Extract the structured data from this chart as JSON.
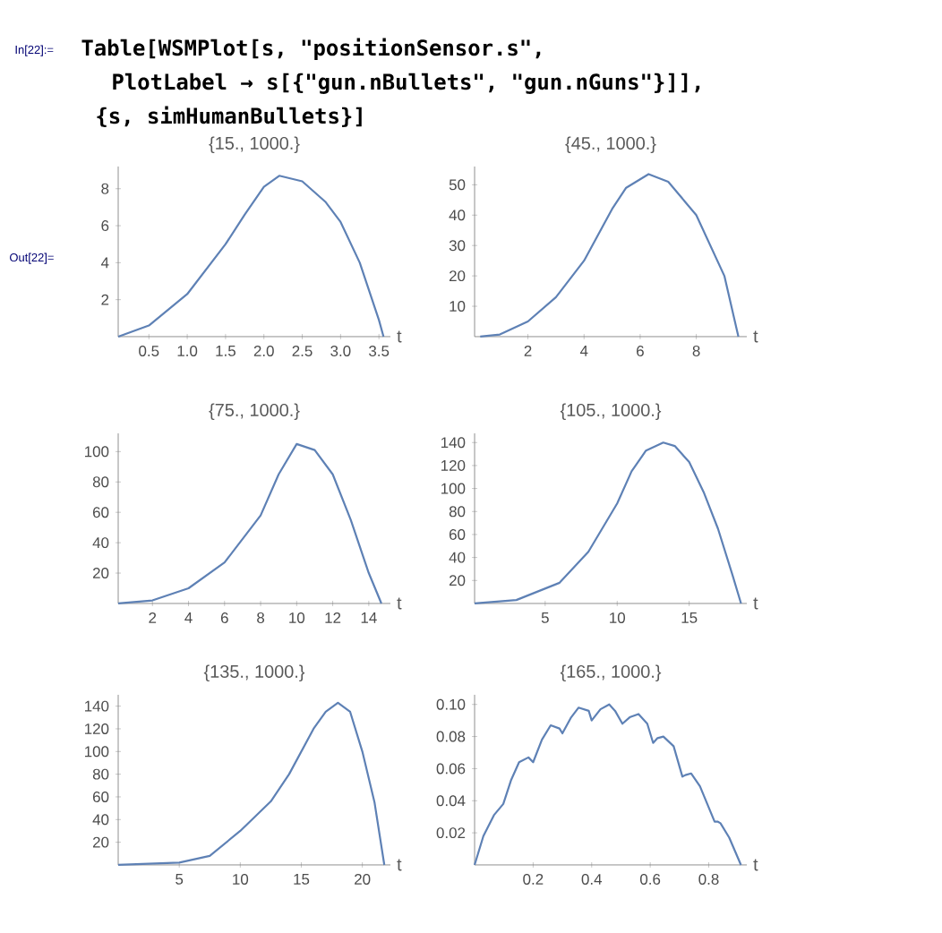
{
  "chart_data": [
    {
      "type": "line",
      "title": "{15., 1000.}",
      "xlabel": "t",
      "marker": "none",
      "annotations": [
        "In[22]:=",
        "Table[WSMPlot[s, \"positionSensor.s\",",
        "PlotLabel → s[{\"gun.nBullets\", \"gun.nGuns\"}]],",
        "{s, simHumanBullets}]",
        "Out[22]="
      ],
      "x": [
        0.1,
        0.5,
        1.0,
        1.5,
        1.75,
        2.0,
        2.2,
        2.5,
        2.8,
        3.0,
        3.25,
        3.5,
        3.56
      ],
      "series": [
        {
          "color": "#5e81b5",
          "values": [
            0,
            0.6,
            2.3,
            5.0,
            6.6,
            8.1,
            8.7,
            8.4,
            7.3,
            6.2,
            4.0,
            0.9,
            0
          ]
        }
      ],
      "xlim": [
        0.1,
        3.65
      ],
      "ylim": [
        0,
        9.2
      ],
      "xticks": [
        0.5,
        {
          "value": 1,
          "label": "1.0"
        },
        1.5,
        {
          "value": 2,
          "label": "2.0"
        },
        2.5,
        {
          "value": 3,
          "label": "3.0"
        },
        3.5
      ],
      "yticks": [
        2,
        4,
        6,
        8
      ]
    },
    {
      "type": "line",
      "title": "{45., 1000.}",
      "xlabel": "t",
      "marker": "none",
      "x": [
        0.3,
        1,
        2,
        3,
        4,
        5,
        5.5,
        6.3,
        7,
        8,
        9,
        9.5
      ],
      "series": [
        {
          "color": "#5e81b5",
          "values": [
            0,
            0.7,
            5,
            13,
            25,
            42,
            49,
            53.5,
            51,
            40,
            20,
            0
          ]
        }
      ],
      "xlim": [
        0.1,
        9.8
      ],
      "ylim": [
        0,
        56
      ],
      "xticks": [
        2,
        4,
        6,
        8
      ],
      "yticks": [
        10,
        20,
        30,
        40,
        50
      ]
    },
    {
      "type": "line",
      "title": "{75., 1000.}",
      "xlabel": "t",
      "marker": "none",
      "x": [
        0.1,
        2,
        4,
        6,
        8,
        9,
        10,
        11,
        12,
        13,
        14,
        14.7
      ],
      "series": [
        {
          "color": "#5e81b5",
          "values": [
            0,
            2,
            10,
            27,
            58,
            85,
            105,
            101,
            85,
            55,
            20,
            0
          ]
        }
      ],
      "xlim": [
        0.1,
        15.2
      ],
      "ylim": [
        0,
        112
      ],
      "xticks": [
        2,
        4,
        6,
        8,
        10,
        12,
        14
      ],
      "yticks": [
        20,
        40,
        60,
        80,
        100
      ]
    },
    {
      "type": "line",
      "title": "{105., 1000.}",
      "xlabel": "t",
      "marker": "none",
      "x": [
        0.1,
        3,
        6,
        8,
        10,
        11,
        12,
        13.2,
        14,
        15,
        16,
        17,
        18,
        18.6
      ],
      "series": [
        {
          "color": "#5e81b5",
          "values": [
            0,
            3,
            18,
            45,
            87,
            115,
            133,
            140,
            137,
            123,
            97,
            65,
            25,
            0
          ]
        }
      ],
      "xlim": [
        0.1,
        19
      ],
      "ylim": [
        0,
        148
      ],
      "xticks": [
        5,
        10,
        15
      ],
      "yticks": [
        20,
        40,
        60,
        80,
        100,
        120,
        140
      ]
    },
    {
      "type": "line",
      "title": "{135., 1000.}",
      "xlabel": "t",
      "marker": "none",
      "x": [
        0,
        5,
        7.5,
        10,
        12.5,
        14,
        15,
        16,
        17,
        18,
        19,
        20,
        21,
        21.8
      ],
      "series": [
        {
          "color": "#5e81b5",
          "values": [
            0,
            2,
            8,
            30,
            56,
            80,
            100,
            120,
            135,
            143,
            135,
            100,
            55,
            0
          ]
        }
      ],
      "xlim": [
        0,
        22.3
      ],
      "ylim": [
        0,
        150
      ],
      "xticks": [
        5,
        10,
        15,
        20
      ],
      "yticks": [
        20,
        40,
        60,
        80,
        100,
        120,
        140
      ]
    },
    {
      "type": "line",
      "title": "{165., 1000.}",
      "xlabel": "t",
      "marker": "none",
      "x": [
        0,
        0.03,
        0.066,
        0.098,
        0.125,
        0.152,
        0.184,
        0.2,
        0.23,
        0.26,
        0.29,
        0.3,
        0.33,
        0.355,
        0.39,
        0.4,
        0.43,
        0.46,
        0.48,
        0.505,
        0.53,
        0.56,
        0.59,
        0.61,
        0.625,
        0.645,
        0.68,
        0.71,
        0.72,
        0.74,
        0.77,
        0.82,
        0.83,
        0.84,
        0.87,
        0.91
      ],
      "series": [
        {
          "color": "#5e81b5",
          "values": [
            0,
            0.018,
            0.031,
            0.038,
            0.053,
            0.064,
            0.067,
            0.064,
            0.078,
            0.087,
            0.085,
            0.082,
            0.092,
            0.098,
            0.096,
            0.09,
            0.097,
            0.1,
            0.096,
            0.088,
            0.092,
            0.094,
            0.088,
            0.076,
            0.079,
            0.08,
            0.074,
            0.055,
            0.056,
            0.057,
            0.049,
            0.027,
            0.027,
            0.026,
            0.017,
            0
          ]
        }
      ],
      "xlim": [
        0,
        0.93
      ],
      "ylim": [
        0,
        0.106
      ],
      "xticks": [
        0.2,
        0.4,
        0.6,
        0.8
      ],
      "yticks": [
        0.02,
        0.04,
        0.06,
        0.08,
        {
          "value": 0.1,
          "label": "0.10"
        }
      ]
    }
  ]
}
